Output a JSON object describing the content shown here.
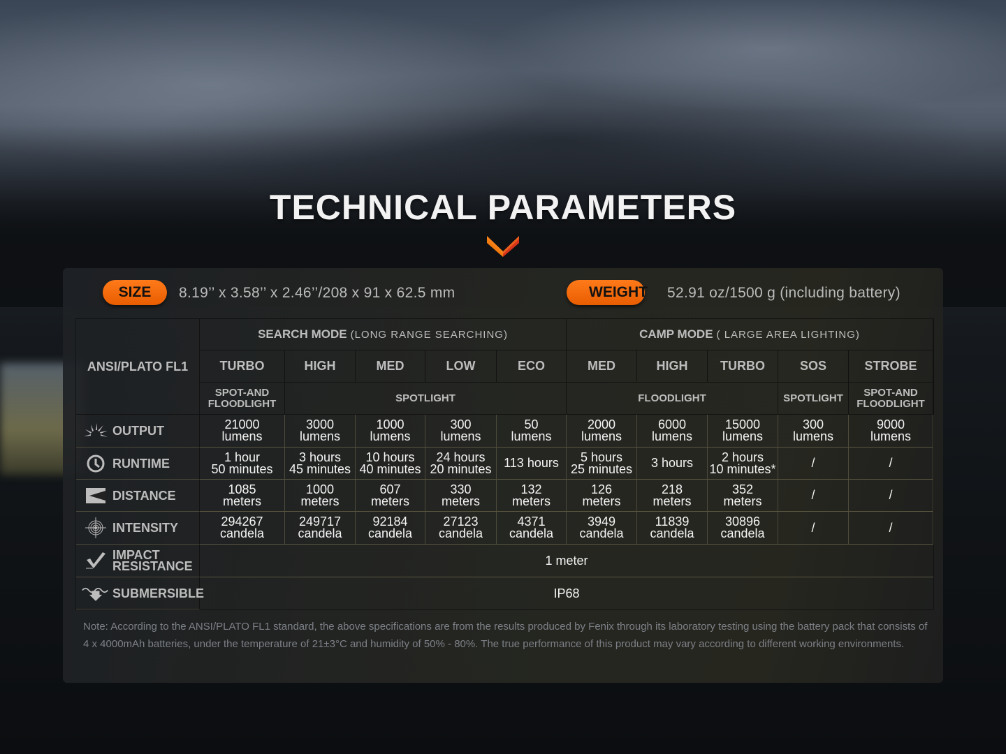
{
  "title": "TECHNICAL PARAMETERS",
  "colors": {
    "accent": "#f06a0a",
    "accent_dark": "#c8400a"
  },
  "size": {
    "label": "SIZE",
    "value": "8.19’’ x 3.58’’ x 2.46’’/208 x 91 x 62.5 mm"
  },
  "weight": {
    "label": "WEIGHT",
    "value": "52.91 oz/1500 g (including battery)"
  },
  "table": {
    "corner": "ANSI/PLATO FL1",
    "modes": [
      {
        "name": "SEARCH MODE",
        "sub": "(LONG RANGE SEARCHING)"
      },
      {
        "name": "CAMP MODE",
        "sub": "( LARGE AREA LIGHTING)"
      }
    ],
    "levels": [
      "TURBO",
      "HIGH",
      "MED",
      "LOW",
      "ECO",
      "MED",
      "HIGH",
      "TURBO",
      "SOS",
      "STROBE"
    ],
    "light_types": [
      {
        "label": "SPOT-AND FLOODLIGHT",
        "span": 1
      },
      {
        "label": "SPOTLIGHT",
        "span": 4
      },
      {
        "label": "FLOODLIGHT",
        "span": 3
      },
      {
        "label": "SPOTLIGHT",
        "span": 1
      },
      {
        "label": "SPOT-AND FLOODLIGHT",
        "span": 1
      }
    ],
    "rows": [
      {
        "label": "OUTPUT",
        "icon": "light-rays-icon",
        "values": [
          "21000\nlumens",
          "3000\nlumens",
          "1000\nlumens",
          "300\nlumens",
          "50\nlumens",
          "2000\nlumens",
          "6000\nlumens",
          "15000\nlumens",
          "300\nlumens",
          "9000\nlumens"
        ]
      },
      {
        "label": "RUNTIME",
        "icon": "clock-icon",
        "values": [
          "1 hour\n50 minutes",
          "3 hours\n45 minutes",
          "10 hours\n40 minutes",
          "24 hours\n20 minutes",
          "113 hours",
          "5 hours\n25 minutes",
          "3 hours",
          "2 hours\n10 minutes*",
          "/",
          "/"
        ]
      },
      {
        "label": "DISTANCE",
        "icon": "distance-icon",
        "values": [
          "1085\nmeters",
          "1000\nmeters",
          "607\nmeters",
          "330\nmeters",
          "132\nmeters",
          "126\nmeters",
          "218\nmeters",
          "352\nmeters",
          "/",
          "/"
        ]
      },
      {
        "label": "INTENSITY",
        "icon": "target-icon",
        "values": [
          "294267\ncandela",
          "249717\ncandela",
          "92184\ncandela",
          "27123\ncandela",
          "4371\ncandela",
          "3949\ncandela",
          "11839\ncandela",
          "30896\ncandela",
          "/",
          "/"
        ]
      }
    ],
    "impact": {
      "label": "IMPACT\nRESISTANCE",
      "icon": "impact-icon",
      "value": "1 meter"
    },
    "submersible": {
      "label": "SUBMERSIBLE",
      "icon": "submersible-icon",
      "value": "IP68"
    }
  },
  "note": "Note: According to the ANSI/PLATO FL1 standard, the above specifications are from the results produced by Fenix through its laboratory testing using the battery pack that consists of 4 x 4000mAh batteries, under the temperature of 21±3°C and humidity of 50% - 80%. The true performance of this product may vary according to different working environments."
}
